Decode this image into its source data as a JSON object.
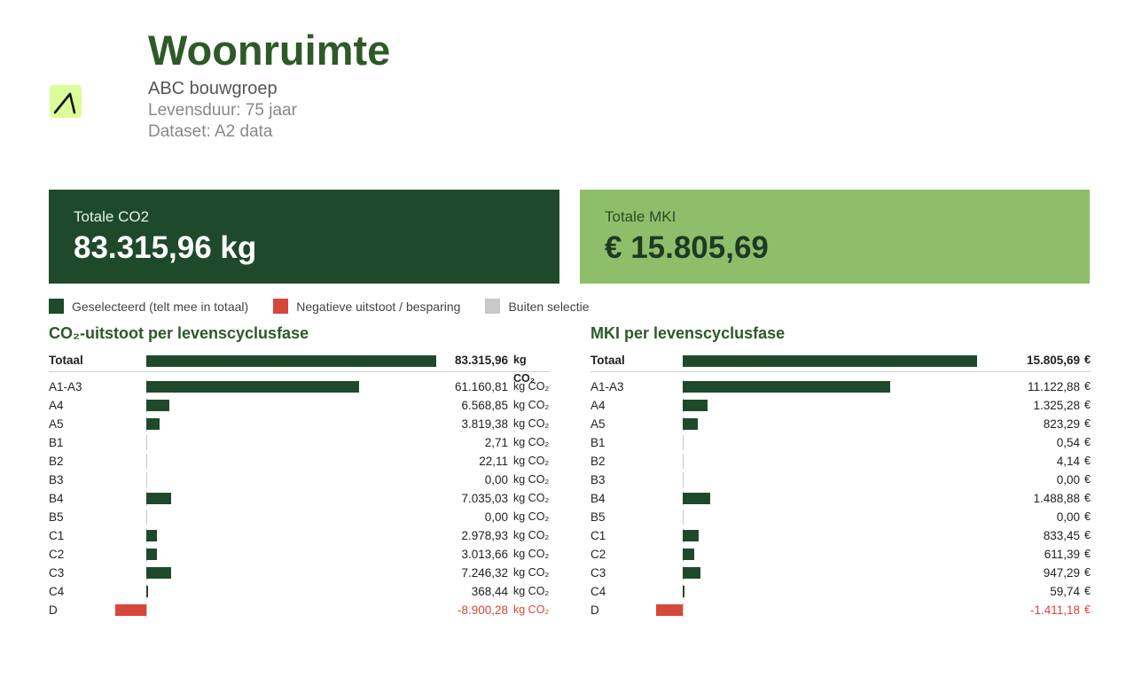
{
  "header": {
    "title": "Woonruimte",
    "company": "ABC bouwgroep",
    "lifespan": "Levensduur: 75 jaar",
    "dataset": "Dataset: A2 data",
    "logo_icon": "slash-logo-icon"
  },
  "cards": {
    "co2": {
      "label": "Totale CO2",
      "value": "83.315,96 kg"
    },
    "mki": {
      "label": "Totale MKI",
      "value": "€ 15.805,69"
    }
  },
  "legend": [
    {
      "label": "Geselecteerd (telt mee in totaal)",
      "color": "#1e4a2b"
    },
    {
      "label": "Negatieve uitstoot / besparing",
      "color": "#d6473b"
    },
    {
      "label": "Buiten selectie",
      "color": "#c8c8c8"
    }
  ],
  "colors": {
    "selected": "#1e4a2b",
    "negative": "#d6473b",
    "outside": "#c8c8c8",
    "heading": "#2d5a27"
  },
  "co2_panel": {
    "title": "CO₂-uitstoot per levenscyclusfase",
    "unit": "kg CO₂",
    "total": {
      "label": "Totaal",
      "value": 83315.96,
      "display": "83.315,96"
    },
    "rows": [
      {
        "label": "A1-A3",
        "value": 61160.81,
        "display": "61.160,81"
      },
      {
        "label": "A4",
        "value": 6568.85,
        "display": "6.568,85"
      },
      {
        "label": "A5",
        "value": 3819.38,
        "display": "3.819,38"
      },
      {
        "label": "B1",
        "value": 2.71,
        "display": "2,71"
      },
      {
        "label": "B2",
        "value": 22.11,
        "display": "22,11"
      },
      {
        "label": "B3",
        "value": 0,
        "display": "0,00"
      },
      {
        "label": "B4",
        "value": 7035.03,
        "display": "7.035,03"
      },
      {
        "label": "B5",
        "value": 0,
        "display": "0,00"
      },
      {
        "label": "C1",
        "value": 2978.93,
        "display": "2.978,93"
      },
      {
        "label": "C2",
        "value": 3013.66,
        "display": "3.013,66"
      },
      {
        "label": "C3",
        "value": 7246.32,
        "display": "7.246,32"
      },
      {
        "label": "C4",
        "value": 368.44,
        "display": "368,44"
      },
      {
        "label": "D",
        "value": -8900.28,
        "display": "-8.900,28"
      }
    ]
  },
  "mki_panel": {
    "title": "MKI per levenscyclusfase",
    "unit": "€",
    "total": {
      "label": "Totaal",
      "value": 15805.69,
      "display": "15.805,69"
    },
    "rows": [
      {
        "label": "A1-A3",
        "value": 11122.88,
        "display": "11.122,88"
      },
      {
        "label": "A4",
        "value": 1325.28,
        "display": "1.325,28"
      },
      {
        "label": "A5",
        "value": 823.29,
        "display": "823,29"
      },
      {
        "label": "B1",
        "value": 0.54,
        "display": "0,54"
      },
      {
        "label": "B2",
        "value": 4.14,
        "display": "4,14"
      },
      {
        "label": "B3",
        "value": 0,
        "display": "0,00"
      },
      {
        "label": "B4",
        "value": 1488.88,
        "display": "1.488,88"
      },
      {
        "label": "B5",
        "value": 0,
        "display": "0,00"
      },
      {
        "label": "C1",
        "value": 833.45,
        "display": "833,45"
      },
      {
        "label": "C2",
        "value": 611.39,
        "display": "611,39"
      },
      {
        "label": "C3",
        "value": 947.29,
        "display": "947,29"
      },
      {
        "label": "C4",
        "value": 59.74,
        "display": "59,74"
      },
      {
        "label": "D",
        "value": -1411.18,
        "display": "-1.411,18"
      }
    ]
  }
}
